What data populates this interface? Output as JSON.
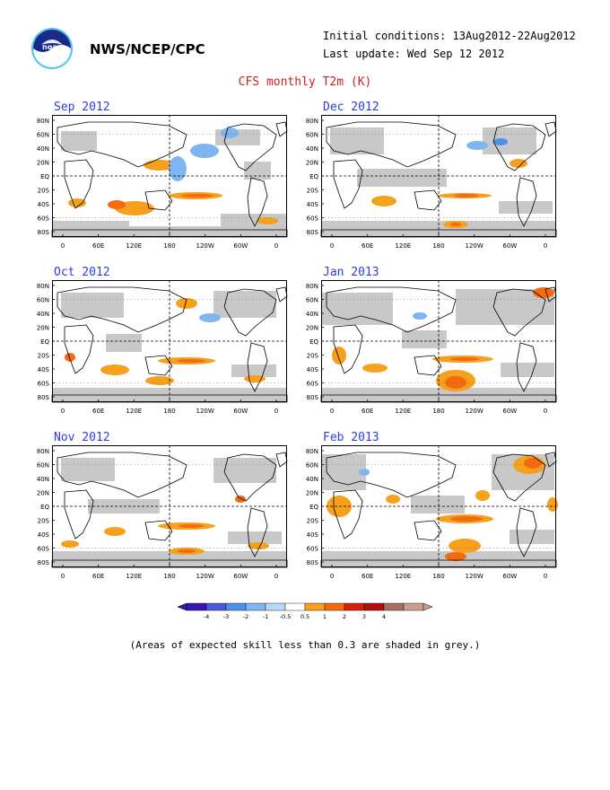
{
  "header": {
    "agency": "NWS/NCEP/CPC",
    "initial_conditions": "Initial conditions: 13Aug2012-22Aug2012",
    "last_update": "Last update: Wed Sep 12 2012",
    "title": "CFS monthly T2m (K)"
  },
  "axes": {
    "lat_labels": [
      "80N",
      "60N",
      "40N",
      "20N",
      "EQ",
      "20S",
      "40S",
      "60S",
      "80S"
    ],
    "lon_labels": [
      "0",
      "60E",
      "120E",
      "180",
      "120W",
      "60W",
      "0"
    ]
  },
  "panels": [
    {
      "title": "Sep 2012"
    },
    {
      "title": "Dec 2012"
    },
    {
      "title": "Oct 2012"
    },
    {
      "title": "Jan 2013"
    },
    {
      "title": "Nov 2012"
    },
    {
      "title": "Feb 2013"
    }
  ],
  "colorbar": {
    "labels": [
      "-4",
      "-3",
      "-2",
      "-1",
      "-0.5",
      "0.5",
      "1",
      "2",
      "3",
      "4"
    ],
    "colors": [
      "#3a14b4",
      "#4a5bd6",
      "#4f8fe8",
      "#7fb5f0",
      "#b8d8f8",
      "#ffffff",
      "#f6a01c",
      "#f46a10",
      "#d4230c",
      "#b01010",
      "#a57060",
      "#c8a090"
    ]
  },
  "colors": {
    "grey_skill": "#c8c8c8",
    "warm_weak": "#f6a01c",
    "warm_mid": "#f46a10",
    "warm_strong": "#d4230c",
    "cool_weak": "#7fb5f0",
    "cool_mid": "#4f8fe8",
    "title_red": "#d21d1d",
    "panel_title_blue": "#2b3ee0"
  },
  "footnote": "(Areas of expected skill less than 0.3 are shaded in grey.)"
}
